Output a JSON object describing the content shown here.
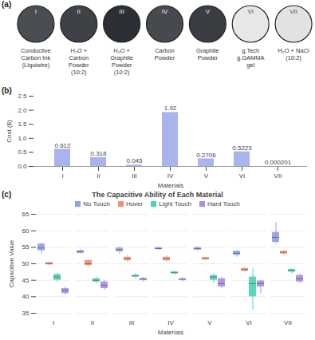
{
  "chart_data": [
    {
      "type": "images",
      "annotations": [
        "(a)"
      ],
      "categories": [
        "I",
        "II",
        "III",
        "IV",
        "V",
        "VI",
        "VII"
      ],
      "captions": [
        [
          "Conductive",
          "Carbon Ink",
          "(Liquiwire)"
        ],
        [
          "H₂O +",
          "Carbon",
          "Powder",
          "(10:2)"
        ],
        [
          "H₂O +",
          "Graphite",
          "Powder",
          "(10:2)"
        ],
        [
          "Carbon",
          "Powder"
        ],
        [
          "Graphite",
          "Powder"
        ],
        [
          "g.Tech",
          "g.GAMMA",
          "gel"
        ],
        [
          "H₂O + NaCl",
          "(10:2)"
        ]
      ],
      "colors": [
        "#4a4e52",
        "#3e4246",
        "#2c2f33",
        "#46494d",
        "#3a3e42",
        "#e6e8e8",
        "#e0e2e3"
      ]
    },
    {
      "type": "bar",
      "annotations": [
        "(b)"
      ],
      "categories": [
        "I",
        "II",
        "III",
        "IV",
        "V",
        "VI",
        "VII"
      ],
      "values": [
        0.612,
        0.318,
        0.045,
        1.92,
        0.2706,
        0.5223,
        0.000201
      ],
      "color": "#a9b4ec",
      "x_label": "Materials",
      "y_label": "Cost ($)",
      "ylim": [
        0,
        2.5
      ],
      "yticks": [
        {
          "value": 0,
          "label": "0.0"
        },
        0.5,
        {
          "value": 1,
          "label": "1.0"
        },
        1.5,
        {
          "value": 2,
          "label": "2.0"
        },
        2.5
      ],
      "grid": false,
      "data_labels": true
    },
    {
      "type": "box",
      "annotations": [
        "(c)"
      ],
      "title": "The Capacitive Ability of Each Material",
      "categories": [
        "I",
        "II",
        "III",
        "IV",
        "V",
        "VI",
        "VII"
      ],
      "x_label": "Materials",
      "y_label": "Capacitive Value",
      "ylim": [
        35,
        65
      ],
      "yticks": [
        35,
        40,
        45,
        50,
        55,
        60,
        65
      ],
      "grid": true,
      "legend": "top",
      "series": [
        {
          "name": "No Touch",
          "color": "#8d9fe6",
          "min": [
            53,
            53,
            53,
            54,
            53.8,
            52,
            56
          ],
          "q1": [
            54,
            53.2,
            53.7,
            54.3,
            54.2,
            52.6,
            56.5
          ],
          "median": [
            54.8,
            53.6,
            54.2,
            54.6,
            54.6,
            53.2,
            58
          ],
          "q3": [
            56,
            54,
            54.8,
            54.9,
            54.9,
            53.8,
            59.5
          ],
          "max": [
            56.3,
            54.3,
            55,
            55,
            55.2,
            54,
            62.5
          ]
        },
        {
          "name": "Hover",
          "color": "#f0906f",
          "min": [
            49.5,
            49,
            50.5,
            50.5,
            51,
            47.5,
            52.5
          ],
          "q1": [
            49.7,
            49.5,
            51,
            51,
            51.3,
            47.8,
            53
          ],
          "median": [
            50,
            50,
            51.5,
            51.5,
            51.6,
            48.2,
            53.5
          ],
          "q3": [
            50.4,
            51,
            52,
            52,
            51.9,
            48.6,
            53.8
          ],
          "max": [
            50.5,
            51.2,
            52.5,
            52.5,
            52,
            48.8,
            54
          ]
        },
        {
          "name": "Light Touch",
          "color": "#4fd3b2",
          "min": [
            44.5,
            44,
            45.5,
            46.5,
            44,
            36,
            47
          ],
          "q1": [
            45,
            44.5,
            46,
            47,
            45,
            40,
            47.5
          ],
          "median": [
            46,
            45,
            46.3,
            47.3,
            46,
            44,
            48
          ],
          "q3": [
            46.8,
            45.5,
            46.6,
            47.6,
            46.5,
            46,
            48.3
          ],
          "max": [
            47,
            46,
            47,
            47.8,
            47,
            48.5,
            48.5
          ]
        },
        {
          "name": "Hard Touch",
          "color": "#a98ee2",
          "min": [
            40.5,
            42,
            44.5,
            44.5,
            42.5,
            41,
            44
          ],
          "q1": [
            41,
            42.5,
            45,
            45,
            43,
            43,
            44.5
          ],
          "median": [
            42,
            43.5,
            45.3,
            45.3,
            44,
            44,
            45.5
          ],
          "q3": [
            42.5,
            44.5,
            45.6,
            45.5,
            45.5,
            44.8,
            46.5
          ],
          "max": [
            43,
            45,
            46,
            45.8,
            46,
            45,
            47
          ]
        }
      ]
    }
  ]
}
